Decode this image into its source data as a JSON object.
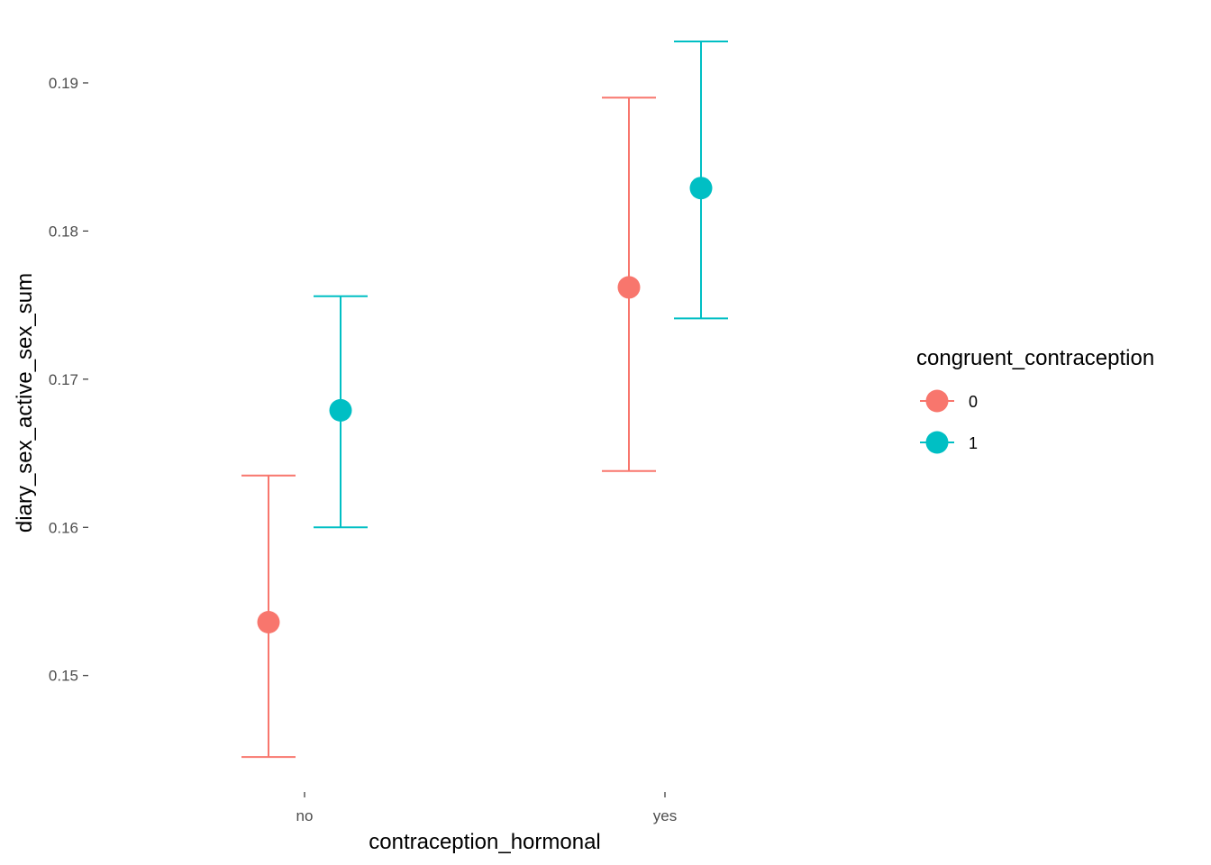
{
  "chart_data": {
    "type": "scatter",
    "title": "",
    "xlabel": "contraception_hormonal",
    "ylabel": "diary_sex_active_sex_sum",
    "categories": [
      "no",
      "yes"
    ],
    "ylim": [
      0.1425,
      0.1945
    ],
    "yticks": [
      0.15,
      0.16,
      0.17,
      0.18,
      0.19
    ],
    "ytick_labels": [
      "0.15",
      "0.16",
      "0.17",
      "0.18",
      "0.19"
    ],
    "grid": false,
    "legend": {
      "title": "congruent_contraception",
      "placement": "right"
    },
    "series": [
      {
        "name": "0",
        "color": "#F8766D",
        "points": [
          {
            "x": "no",
            "y": 0.1536,
            "lower": 0.1445,
            "upper": 0.1635
          },
          {
            "x": "yes",
            "y": 0.1762,
            "lower": 0.1638,
            "upper": 0.189
          }
        ]
      },
      {
        "name": "1",
        "color": "#00BFC4",
        "points": [
          {
            "x": "no",
            "y": 0.1679,
            "lower": 0.16,
            "upper": 0.1756
          },
          {
            "x": "yes",
            "y": 0.1829,
            "lower": 0.1741,
            "upper": 0.1928
          }
        ]
      }
    ]
  }
}
